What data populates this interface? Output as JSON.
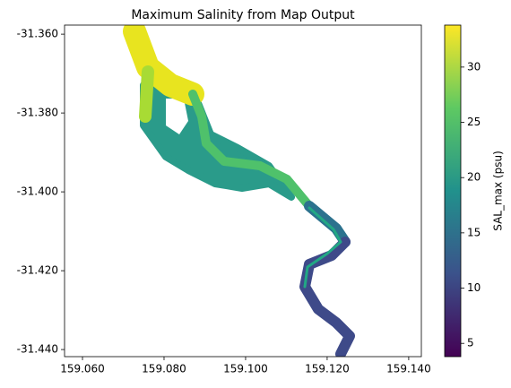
{
  "chart_data": {
    "type": "map",
    "title": "Maximum Salinity from Map Output",
    "xlim": [
      159.0556,
      159.1431
    ],
    "ylim": [
      -31.4418,
      -31.3577
    ],
    "xticks": [
      {
        "value": 159.06,
        "label": "159.060"
      },
      {
        "value": 159.08,
        "label": "159.080"
      },
      {
        "value": 159.1,
        "label": "159.100"
      },
      {
        "value": 159.12,
        "label": "159.120"
      },
      {
        "value": 159.14,
        "label": "159.140"
      }
    ],
    "yticks": [
      {
        "value": -31.36,
        "label": "-31.360"
      },
      {
        "value": -31.38,
        "label": "-31.380"
      },
      {
        "value": -31.4,
        "label": "-31.400"
      },
      {
        "value": -31.42,
        "label": "-31.420"
      },
      {
        "value": -31.44,
        "label": "-31.440"
      }
    ],
    "colorbar": {
      "label": "SAL_max (psu)",
      "lim": [
        3.8,
        33.8
      ],
      "ticks": [
        5,
        10,
        15,
        20,
        25,
        30
      ]
    }
  }
}
